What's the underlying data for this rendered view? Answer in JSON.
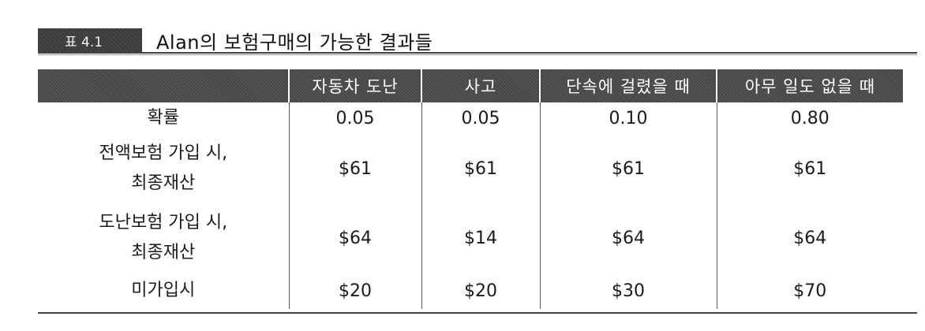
{
  "caption": {
    "badge": "표 4.1",
    "title": "Alan의 보험구매의 가능한 결과들"
  },
  "table": {
    "columns": [
      "",
      "자동차 도난",
      "사고",
      "단속에 걸렸을 때",
      "아무 일도 없을 때"
    ],
    "rows": [
      {
        "label_lines": [
          "확률"
        ],
        "values": [
          "0.05",
          "0.05",
          "0.10",
          "0.80"
        ]
      },
      {
        "label_lines": [
          "전액보험 가입 시,",
          "최종재산"
        ],
        "values": [
          "$61",
          "$61",
          "$61",
          "$61"
        ]
      },
      {
        "label_lines": [
          "도난보험 가입 시,",
          "최종재산"
        ],
        "values": [
          "$64",
          "$14",
          "$64",
          "$64"
        ]
      },
      {
        "label_lines": [
          "미가입시"
        ],
        "values": [
          "$20",
          "$20",
          "$30",
          "$70"
        ]
      }
    ]
  }
}
